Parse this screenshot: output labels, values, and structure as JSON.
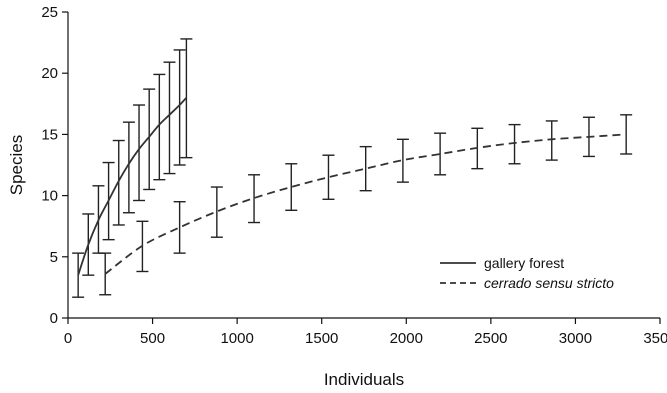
{
  "chart_data": {
    "type": "line",
    "title": "",
    "xlabel": "Individuals",
    "ylabel": "Species",
    "xlim": [
      0,
      3500
    ],
    "ylim": [
      0,
      25
    ],
    "xticks": [
      0,
      500,
      1000,
      1500,
      2000,
      2500,
      3000,
      3500
    ],
    "yticks": [
      0,
      5,
      10,
      15,
      20,
      25
    ],
    "grid": false,
    "legend_position": "bottom-right",
    "series": [
      {
        "name": "gallery forest",
        "line_style": "solid",
        "color": "#333333",
        "x": [
          60,
          120,
          180,
          240,
          300,
          360,
          420,
          480,
          540,
          600,
          660,
          700
        ],
        "y": [
          3.5,
          6.0,
          8.0,
          9.6,
          11.2,
          12.6,
          13.8,
          14.8,
          15.8,
          16.6,
          17.4,
          18.0
        ],
        "y_lower": [
          1.7,
          3.5,
          5.3,
          6.4,
          7.6,
          8.6,
          9.6,
          10.5,
          11.3,
          11.8,
          12.5,
          13.1
        ],
        "y_upper": [
          5.3,
          8.5,
          10.8,
          12.7,
          14.5,
          16.0,
          17.4,
          18.7,
          19.9,
          20.9,
          21.9,
          22.8
        ]
      },
      {
        "name": "cerrado sensu stricto",
        "line_style": "dashed",
        "color": "#333333",
        "x": [
          220,
          440,
          660,
          880,
          1100,
          1320,
          1540,
          1760,
          1980,
          2200,
          2420,
          2640,
          2860,
          3080,
          3300
        ],
        "y": [
          3.6,
          5.9,
          7.4,
          8.7,
          9.8,
          10.7,
          11.5,
          12.2,
          12.9,
          13.4,
          13.9,
          14.3,
          14.6,
          14.8,
          15.0
        ],
        "y_lower": [
          1.9,
          3.8,
          5.3,
          6.6,
          7.8,
          8.8,
          9.7,
          10.4,
          11.1,
          11.7,
          12.2,
          12.6,
          12.9,
          13.2,
          13.4
        ],
        "y_upper": [
          5.3,
          7.9,
          9.5,
          10.7,
          11.7,
          12.6,
          13.3,
          14.0,
          14.6,
          15.1,
          15.5,
          15.8,
          16.1,
          16.4,
          16.6
        ]
      }
    ]
  }
}
